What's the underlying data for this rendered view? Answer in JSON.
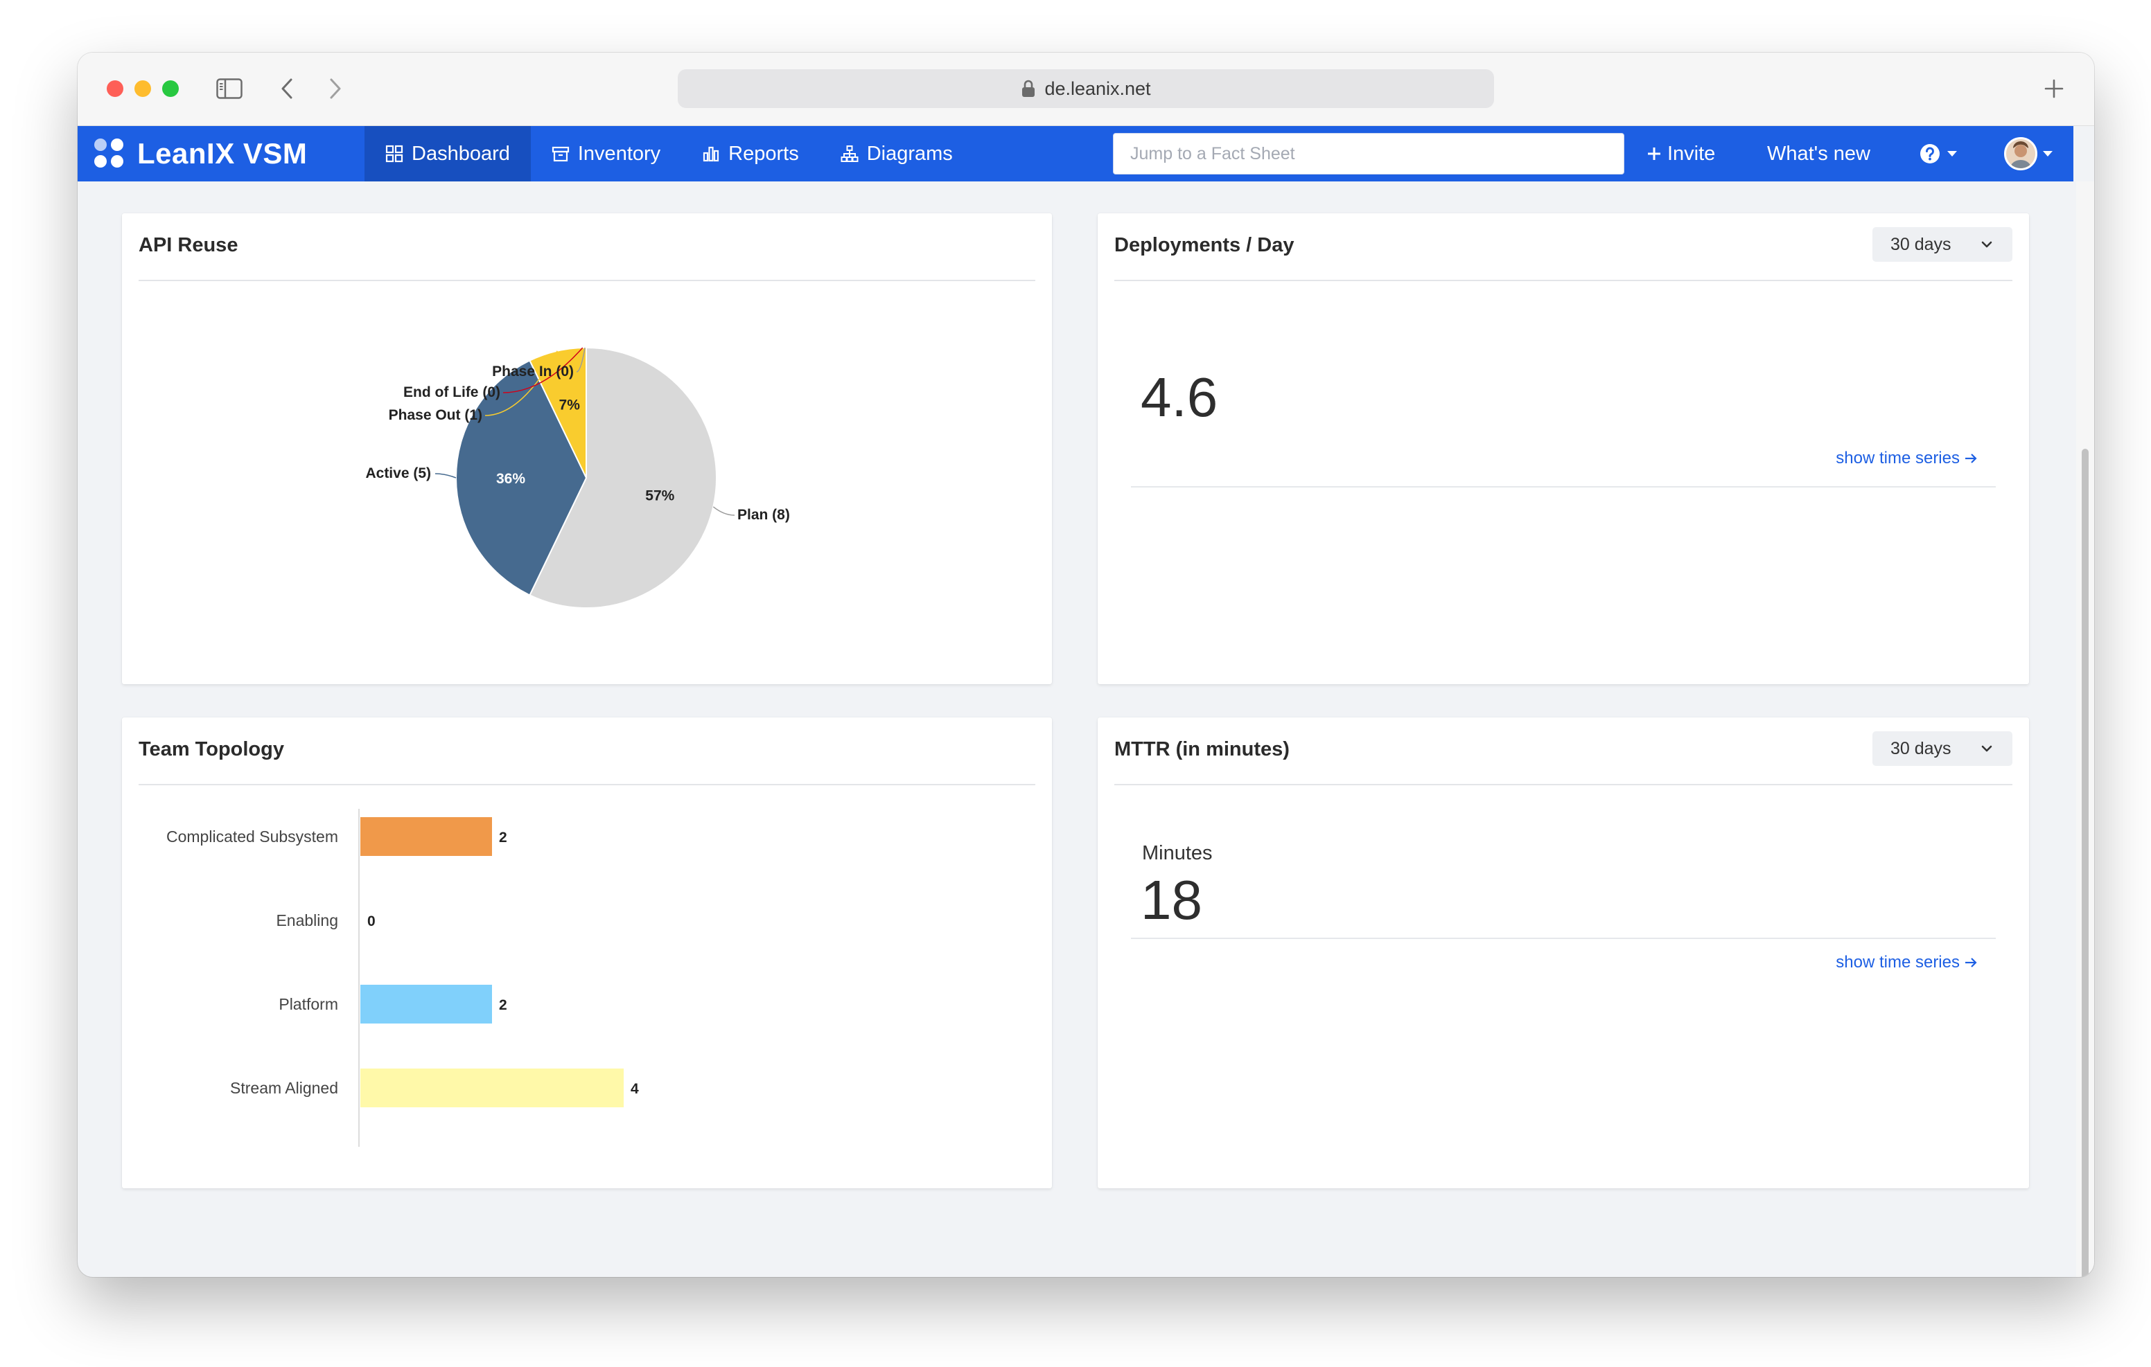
{
  "browser": {
    "url": "de.leanix.net"
  },
  "navbar": {
    "brand": "LeanIX VSM",
    "tabs": [
      {
        "label": "Dashboard",
        "icon": "grid-icon",
        "active": true
      },
      {
        "label": "Inventory",
        "icon": "inventory-icon",
        "active": false
      },
      {
        "label": "Reports",
        "icon": "bar-chart-icon",
        "active": false
      },
      {
        "label": "Diagrams",
        "icon": "hierarchy-icon",
        "active": false
      }
    ],
    "search_placeholder": "Jump to a Fact Sheet",
    "invite_label": "Invite",
    "whats_new_label": "What's new",
    "accent": "#1d5fe3"
  },
  "cards": {
    "api_reuse": {
      "title": "API Reuse"
    },
    "deployments": {
      "title": "Deployments / Day",
      "range": "30 days",
      "value": "4.6",
      "link": "show time series"
    },
    "team_topology": {
      "title": "Team Topology"
    },
    "mttr": {
      "title": "MTTR (in minutes)",
      "range": "30 days",
      "label": "Minutes",
      "value": "18",
      "link": "show time series"
    }
  },
  "chart_data": [
    {
      "type": "pie",
      "slices": [
        {
          "label": "Plan (8)",
          "value": 8,
          "percent_label": "57%",
          "color": "#d9d9d9"
        },
        {
          "label": "Active (5)",
          "value": 5,
          "percent_label": "36%",
          "color": "#466a8f"
        },
        {
          "label": "Phase Out (1)",
          "value": 1,
          "percent_label": "7%",
          "color": "#f9cc2e"
        },
        {
          "label": "End of Life (0)",
          "value": 0,
          "percent_label": "",
          "color": "#d0021b"
        },
        {
          "label": "Phase In (0)",
          "value": 0,
          "percent_label": "",
          "color": "#9b9b9b"
        }
      ]
    },
    {
      "type": "bar",
      "orientation": "horizontal",
      "categories": [
        "Complicated Subsystem",
        "Enabling",
        "Platform",
        "Stream Aligned"
      ],
      "values": [
        2,
        0,
        2,
        4
      ],
      "value_labels": [
        "2",
        "0",
        "2",
        "4"
      ],
      "colors": [
        "#f0994a",
        "#8fd3ff",
        "#80d0fb",
        "#fff9a9"
      ],
      "xlim": [
        0,
        4.6
      ]
    }
  ]
}
